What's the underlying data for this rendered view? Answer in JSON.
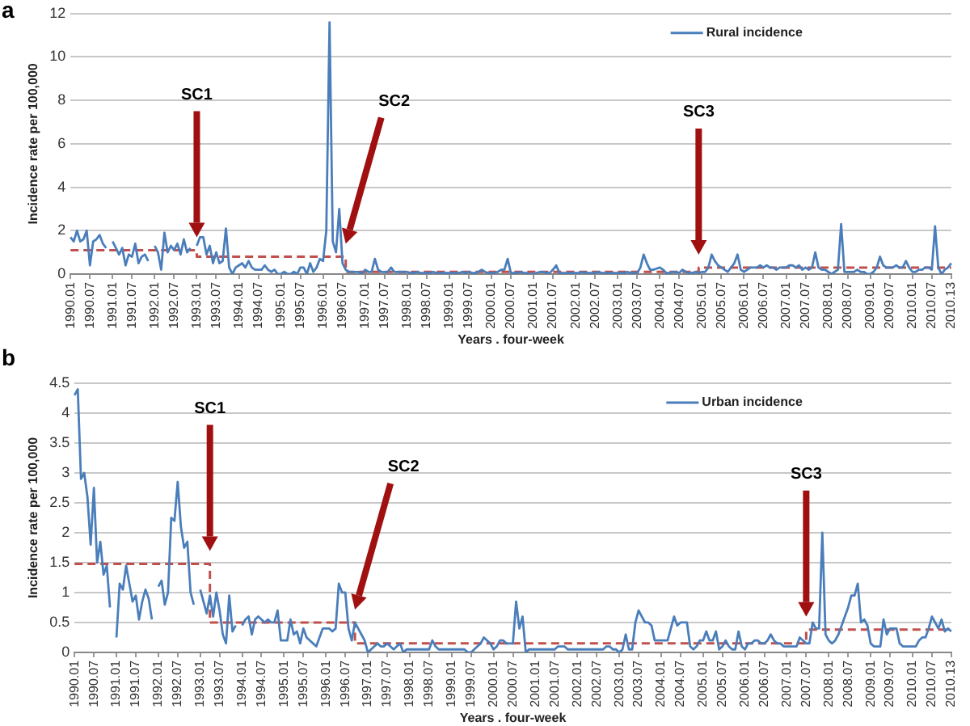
{
  "chart_data": [
    {
      "type": "line",
      "title": "a",
      "xlabel": "Years . four-week",
      "ylabel": "Incidence rate per 100,000",
      "grid": "y",
      "legend": "top right",
      "marker": "none",
      "categories": [
        "1990.01",
        null,
        null,
        null,
        null,
        null,
        "1990.07",
        null,
        null,
        null,
        null,
        null,
        null,
        "1991.01",
        null,
        null,
        null,
        null,
        null,
        "1991.07",
        null,
        null,
        null,
        null,
        null,
        null,
        "1992.01",
        null,
        null,
        null,
        null,
        null,
        "1992.07",
        null,
        null,
        null,
        null,
        null,
        null,
        "1993.01",
        null,
        null,
        null,
        null,
        null,
        "1993.07",
        null,
        null,
        null,
        null,
        null,
        null,
        "1994.01",
        null,
        null,
        null,
        null,
        null,
        "1994.07",
        null,
        null,
        null,
        null,
        null,
        null,
        "1995.01",
        null,
        null,
        null,
        null,
        null,
        "1995.07",
        null,
        null,
        null,
        null,
        null,
        null,
        "1996.01",
        null,
        null,
        null,
        null,
        null,
        "1996.07",
        null,
        null,
        null,
        null,
        null,
        null,
        "1997.01",
        null,
        null,
        null,
        null,
        null,
        "1997.07",
        null,
        null,
        null,
        null,
        null,
        null,
        "1998.01",
        null,
        null,
        null,
        null,
        null,
        "1998.07",
        null,
        null,
        null,
        null,
        null,
        null,
        "1999.01",
        null,
        null,
        null,
        null,
        null,
        "1999.07",
        null,
        null,
        null,
        null,
        null,
        null,
        "2000.01",
        null,
        null,
        null,
        null,
        null,
        "2000.07",
        null,
        null,
        null,
        null,
        null,
        null,
        "2001.01",
        null,
        null,
        null,
        null,
        null,
        "2001.07",
        null,
        null,
        null,
        null,
        null,
        null,
        "2002.01",
        null,
        null,
        null,
        null,
        null,
        "2002.07",
        null,
        null,
        null,
        null,
        null,
        null,
        "2003.01",
        null,
        null,
        null,
        null,
        null,
        "2003.07",
        null,
        null,
        null,
        null,
        null,
        null,
        "2004.01",
        null,
        null,
        null,
        null,
        null,
        "2004.07",
        null,
        null,
        null,
        null,
        null,
        null,
        "2005.01",
        null,
        null,
        null,
        null,
        null,
        "2005.07",
        null,
        null,
        null,
        null,
        null,
        null,
        "2006.01",
        null,
        null,
        null,
        null,
        null,
        "2006.07",
        null,
        null,
        null,
        null,
        null,
        null,
        "2007.01",
        null,
        null,
        null,
        null,
        null,
        "2007.07",
        null,
        null,
        null,
        null,
        null,
        null,
        "2008.01",
        null,
        null,
        null,
        null,
        null,
        "2008.07",
        null,
        null,
        null,
        null,
        null,
        null,
        "2009.01",
        null,
        null,
        null,
        null,
        null,
        "2009.07",
        null,
        null,
        null,
        null,
        null,
        null,
        "2010.01",
        null,
        null,
        null,
        null,
        null,
        "2010.07",
        null,
        null,
        null,
        null,
        null,
        "2010.13"
      ],
      "ylim": [
        0,
        12
      ],
      "yticks": [
        0,
        2,
        4,
        6,
        8,
        10,
        12
      ],
      "annotations": [
        "SC1",
        "SC2",
        "SC3"
      ],
      "series": [
        {
          "name": "Rural incidence",
          "color": "#4a7ebb",
          "values": [
            1.7,
            1.5,
            2.0,
            1.5,
            1.6,
            2.0,
            0.4,
            1.5,
            1.6,
            1.8,
            1.4,
            1.2,
            null,
            1.5,
            1.2,
            0.9,
            1.2,
            0.4,
            0.9,
            0.8,
            1.4,
            0.5,
            0.8,
            0.9,
            0.6,
            null,
            1.3,
            1.0,
            0.2,
            1.9,
            1.0,
            1.3,
            1.1,
            1.4,
            0.9,
            1.6,
            1.0,
            1.2,
            null,
            1.3,
            1.7,
            1.7,
            0.9,
            1.3,
            0.5,
            1.0,
            0.5,
            0.6,
            2.1,
            0.3,
            0.0,
            0.3,
            0.4,
            0.5,
            0.3,
            0.6,
            0.3,
            0.2,
            0.2,
            0.2,
            0.4,
            0.2,
            0.1,
            0.2,
            0.0,
            0.0,
            0.1,
            0.0,
            0.0,
            0.1,
            0.0,
            0.3,
            0.3,
            0.0,
            0.5,
            0.1,
            0.3,
            0.7,
            0.6,
            2.0,
            11.6,
            1.5,
            1.0,
            3.0,
            0.5,
            0.2,
            0.1,
            0.1,
            0.1,
            0.1,
            0.0,
            0.2,
            0.1,
            0.1,
            0.7,
            0.2,
            0.1,
            0.1,
            0.1,
            0.3,
            0.1,
            0.1,
            0.1,
            0.1,
            0.1,
            0.05,
            0.05,
            0.1,
            0.05,
            0.05,
            0.05,
            0.05,
            0.1,
            0.05,
            0.05,
            0.05,
            0.05,
            0.05,
            0.05,
            0.05,
            0.05,
            0.1,
            0.05,
            0.1,
            0.05,
            0.05,
            0.1,
            0.2,
            0.1,
            0.05,
            0.05,
            0.05,
            0.1,
            0.2,
            0.2,
            0.7,
            0.05,
            0.05,
            0.05,
            0.1,
            0.05,
            0.05,
            0.0,
            0.0,
            0.05,
            0.1,
            0.1,
            0.05,
            0.05,
            0.2,
            0.4,
            0.05,
            0.05,
            0.05,
            0.05,
            0.05,
            0.05,
            0.05,
            0.1,
            0.05,
            0.05,
            0.05,
            0.05,
            0.1,
            0.05,
            0.05,
            0.05,
            0.05,
            0.05,
            0.05,
            0.05,
            0.05,
            0.1,
            0.05,
            0.05,
            0.05,
            0.3,
            0.9,
            0.5,
            0.2,
            0.2,
            0.25,
            0.3,
            0.2,
            0.05,
            0.05,
            0.1,
            0.1,
            0.05,
            0.2,
            0.1,
            0.05,
            0.05,
            0.1,
            0.05,
            0.1,
            0.1,
            0.3,
            0.9,
            0.6,
            0.4,
            0.3,
            0.2,
            0.1,
            0.3,
            0.5,
            0.9,
            0.2,
            0.1,
            0.2,
            0.3,
            0.3,
            0.3,
            0.4,
            0.3,
            0.4,
            0.3,
            0.3,
            0.2,
            0.3,
            0.3,
            0.3,
            0.4,
            0.4,
            0.3,
            0.4,
            0.2,
            0.3,
            0.2,
            0.3,
            1.0,
            0.3,
            0.2,
            0.2,
            0.1,
            0.0,
            0.1,
            0.2,
            2.3,
            0.1,
            0.1,
            0.1,
            0.1,
            0.2,
            0.1,
            0.1,
            0.0,
            0.0,
            0.1,
            0.3,
            0.8,
            0.4,
            0.3,
            0.3,
            0.3,
            0.4,
            0.3,
            0.3,
            0.6,
            0.3,
            0.1,
            0.1,
            0.2,
            0.2,
            0.3,
            0.3,
            0.2,
            2.2,
            0.3,
            0.0,
            0.2,
            0.3,
            0.5
          ]
        },
        {
          "type": "step",
          "color": "#c0504d",
          "line_style": "dashed",
          "values": [
            1.1,
            1.1,
            1.1,
            1.1,
            1.1,
            1.1,
            1.1,
            1.1,
            1.1,
            1.1,
            1.1,
            1.1,
            1.1,
            1.1,
            1.1,
            1.1,
            1.1,
            1.1,
            1.1,
            1.1,
            1.1,
            1.1,
            1.1,
            1.1,
            1.1,
            1.1,
            1.1,
            1.1,
            1.1,
            1.1,
            1.1,
            1.1,
            1.1,
            1.1,
            1.1,
            1.1,
            1.1,
            1.1,
            1.1,
            0.8,
            0.8,
            0.8,
            0.8,
            0.8,
            0.8,
            0.8,
            0.8,
            0.8,
            0.8,
            0.8,
            0.8,
            0.8,
            0.8,
            0.8,
            0.8,
            0.8,
            0.8,
            0.8,
            0.8,
            0.8,
            0.8,
            0.8,
            0.8,
            0.8,
            0.8,
            0.8,
            0.8,
            0.8,
            0.8,
            0.8,
            0.8,
            0.8,
            0.8,
            0.8,
            0.8,
            0.8,
            0.8,
            0.8,
            0.8,
            0.8,
            0.8,
            0.8,
            0.8,
            0.8,
            0.8,
            0.1,
            0.1,
            0.1,
            0.1,
            0.1,
            0.1,
            0.1,
            0.1,
            0.1,
            0.1,
            0.1,
            0.1,
            0.1,
            0.1,
            0.1,
            0.1,
            0.1,
            0.1,
            0.1,
            0.1,
            0.1,
            0.1,
            0.1,
            0.1,
            0.1,
            0.1,
            0.1,
            0.1,
            0.1,
            0.1,
            0.1,
            0.1,
            0.1,
            0.1,
            0.1,
            0.1,
            0.1,
            0.1,
            0.1,
            0.1,
            0.1,
            0.1,
            0.1,
            0.1,
            0.1,
            0.1,
            0.1,
            0.1,
            0.1,
            0.1,
            0.1,
            0.1,
            0.1,
            0.1,
            0.1,
            0.1,
            0.1,
            0.1,
            0.1,
            0.1,
            0.1,
            0.1,
            0.1,
            0.1,
            0.1,
            0.1,
            0.1,
            0.1,
            0.1,
            0.1,
            0.1,
            0.1,
            0.1,
            0.1,
            0.1,
            0.1,
            0.1,
            0.1,
            0.1,
            0.1,
            0.1,
            0.1,
            0.1,
            0.1,
            0.1,
            0.1,
            0.1,
            0.1,
            0.1,
            0.1,
            0.1,
            0.1,
            0.1,
            0.1,
            0.1,
            0.1,
            0.1,
            0.1,
            0.1,
            0.1,
            0.1,
            0.1,
            0.1,
            0.1,
            0.1,
            0.1,
            0.1,
            0.1,
            0.1,
            0.3,
            0.3,
            0.3,
            0.3,
            0.3,
            0.3,
            0.3,
            0.3,
            0.3,
            0.3,
            0.3,
            0.3,
            0.3,
            0.3,
            0.3,
            0.3,
            0.3,
            0.3,
            0.3,
            0.3,
            0.3,
            0.3,
            0.3,
            0.3,
            0.3,
            0.3,
            0.3,
            0.3,
            0.3,
            0.3,
            0.3,
            0.3,
            0.3,
            0.3,
            0.3,
            0.3,
            0.3,
            0.3,
            0.3,
            0.3,
            0.3,
            0.3,
            0.3,
            0.3,
            0.3,
            0.3,
            0.3,
            0.3,
            0.3,
            0.3,
            0.3,
            0.3,
            0.3,
            0.3,
            0.3,
            0.3,
            0.3,
            0.3,
            0.3,
            0.3,
            0.3,
            0.3,
            0.3,
            0.3,
            0.3,
            0.3,
            0.3,
            0.3,
            0.3,
            0.3,
            0.3,
            0.3,
            0.3,
            0.3,
            0.3,
            0.3,
            0.3,
            0.3,
            0.3
          ]
        }
      ]
    },
    {
      "type": "line",
      "title": "b",
      "xlabel": "Years . four-week",
      "ylabel": "Incidence rate per 100,000",
      "grid": "y",
      "legend": "top right",
      "marker": "none",
      "categories": [
        "1990.01",
        null,
        null,
        null,
        null,
        null,
        "1990.07",
        null,
        null,
        null,
        null,
        null,
        null,
        "1991.01",
        null,
        null,
        null,
        null,
        null,
        "1991.07",
        null,
        null,
        null,
        null,
        null,
        null,
        "1992.01",
        null,
        null,
        null,
        null,
        null,
        "1992.07",
        null,
        null,
        null,
        null,
        null,
        null,
        "1993.01",
        null,
        null,
        null,
        null,
        null,
        "1993.07",
        null,
        null,
        null,
        null,
        null,
        null,
        "1994.01",
        null,
        null,
        null,
        null,
        null,
        "1994.07",
        null,
        null,
        null,
        null,
        null,
        null,
        "1995.01",
        null,
        null,
        null,
        null,
        null,
        "1995.07",
        null,
        null,
        null,
        null,
        null,
        null,
        "1996.01",
        null,
        null,
        null,
        null,
        null,
        "1996.07",
        null,
        null,
        null,
        null,
        null,
        null,
        "1997.01",
        null,
        null,
        null,
        null,
        null,
        "1997.07",
        null,
        null,
        null,
        null,
        null,
        null,
        "1998.01",
        null,
        null,
        null,
        null,
        null,
        "1998.07",
        null,
        null,
        null,
        null,
        null,
        null,
        "1999.01",
        null,
        null,
        null,
        null,
        null,
        "1999.07",
        null,
        null,
        null,
        null,
        null,
        null,
        "2000.01",
        null,
        null,
        null,
        null,
        null,
        "2000.07",
        null,
        null,
        null,
        null,
        null,
        null,
        "2001.01",
        null,
        null,
        null,
        null,
        null,
        "2001.07",
        null,
        null,
        null,
        null,
        null,
        null,
        "2002.01",
        null,
        null,
        null,
        null,
        null,
        "2002.07",
        null,
        null,
        null,
        null,
        null,
        null,
        "2003.01",
        null,
        null,
        null,
        null,
        null,
        "2003.07",
        null,
        null,
        null,
        null,
        null,
        null,
        "2004.01",
        null,
        null,
        null,
        null,
        null,
        "2004.07",
        null,
        null,
        null,
        null,
        null,
        null,
        "2005.01",
        null,
        null,
        null,
        null,
        null,
        "2005.07",
        null,
        null,
        null,
        null,
        null,
        null,
        "2006.01",
        null,
        null,
        null,
        null,
        null,
        "2006.07",
        null,
        null,
        null,
        null,
        null,
        null,
        "2007.01",
        null,
        null,
        null,
        null,
        null,
        "2007.07",
        null,
        null,
        null,
        null,
        null,
        null,
        "2008.01",
        null,
        null,
        null,
        null,
        null,
        "2008.07",
        null,
        null,
        null,
        null,
        null,
        null,
        "2009.01",
        null,
        null,
        null,
        null,
        null,
        "2009.07",
        null,
        null,
        null,
        null,
        null,
        null,
        "2010.01",
        null,
        null,
        null,
        null,
        null,
        "2010.07",
        null,
        null,
        null,
        null,
        null,
        "2010.13"
      ],
      "ylim": [
        0,
        4.5
      ],
      "yticks": [
        0,
        0.5,
        1,
        1.5,
        2,
        2.5,
        3,
        3.5,
        4,
        4.5
      ],
      "annotations": [
        "SC1",
        "SC2",
        "SC3"
      ],
      "series": [
        {
          "name": "Urban incidence",
          "color": "#4a7ebb",
          "values": [
            4.3,
            4.4,
            2.9,
            3.0,
            2.6,
            1.8,
            2.75,
            1.5,
            1.85,
            1.3,
            1.45,
            0.75,
            null,
            0.25,
            1.15,
            1.05,
            1.45,
            1.15,
            0.85,
            0.95,
            0.55,
            0.85,
            1.05,
            0.9,
            0.55,
            null,
            1.1,
            1.2,
            0.8,
            1.0,
            2.25,
            2.2,
            2.85,
            2.1,
            1.75,
            1.85,
            1.0,
            0.8,
            null,
            1.05,
            0.85,
            0.65,
            0.95,
            0.6,
            1.0,
            0.7,
            0.3,
            0.15,
            0.95,
            0.35,
            0.45,
            null,
            0.45,
            0.55,
            0.6,
            0.3,
            0.55,
            0.6,
            0.55,
            0.5,
            0.55,
            0.5,
            0.5,
            0.7,
            0.2,
            0.2,
            0.2,
            0.55,
            0.3,
            0.35,
            0.15,
            0.4,
            0.25,
            0.2,
            0.15,
            0.1,
            0.25,
            0.4,
            0.4,
            0.4,
            0.35,
            0.4,
            1.15,
            1.0,
            1.0,
            0.4,
            0.2,
            0.5,
            0.4,
            0.3,
            0.2,
            0.0,
            0.05,
            0.1,
            0.15,
            0.1,
            0.1,
            0.15,
            0.1,
            0.05,
            0.1,
            0.15,
            0.0,
            0.05,
            0.05,
            0.05,
            0.05,
            0.05,
            0.05,
            0.05,
            0.05,
            0.2,
            0.1,
            0.05,
            0.05,
            0.05,
            0.05,
            0.05,
            0.05,
            0.05,
            0.05,
            0.05,
            0.0,
            0.0,
            0.05,
            0.1,
            0.15,
            0.25,
            0.2,
            0.15,
            0.05,
            0.1,
            0.2,
            0.2,
            0.15,
            0.15,
            0.15,
            0.85,
            0.4,
            0.6,
            0.0,
            0.05,
            0.05,
            0.05,
            0.05,
            0.05,
            0.05,
            0.05,
            0.05,
            0.05,
            0.1,
            0.1,
            0.1,
            0.05,
            0.05,
            0.05,
            0.05,
            0.05,
            0.05,
            0.05,
            0.05,
            0.05,
            0.05,
            0.05,
            0.05,
            0.1,
            0.1,
            0.05,
            0.05,
            0.0,
            0.05,
            0.3,
            0.05,
            0.05,
            0.5,
            0.7,
            0.6,
            0.5,
            0.5,
            0.45,
            0.2,
            0.2,
            0.2,
            0.2,
            0.2,
            0.4,
            0.6,
            0.45,
            0.5,
            0.5,
            0.5,
            0.1,
            0.05,
            0.1,
            0.2,
            0.2,
            0.35,
            0.2,
            0.2,
            0.35,
            0.05,
            0.1,
            0.2,
            0.1,
            0.05,
            0.05,
            0.35,
            0.1,
            0.05,
            0.15,
            0.15,
            0.2,
            0.2,
            0.15,
            0.15,
            0.2,
            0.3,
            0.2,
            0.15,
            0.15,
            0.1,
            0.1,
            0.1,
            0.1,
            0.1,
            0.25,
            0.2,
            0.15,
            0.15,
            0.5,
            0.4,
            0.4,
            2.0,
            0.3,
            0.2,
            0.15,
            0.2,
            0.3,
            0.45,
            0.6,
            0.75,
            0.95,
            0.95,
            1.15,
            0.5,
            0.55,
            0.45,
            0.15,
            0.1,
            0.1,
            0.1,
            0.55,
            0.3,
            0.4,
            0.4,
            0.4,
            0.15,
            0.1,
            0.1,
            0.1,
            0.1,
            0.1,
            0.2,
            0.25,
            0.25,
            0.4,
            0.6,
            0.5,
            0.4,
            0.55,
            0.35,
            0.4,
            0.35
          ]
        },
        {
          "type": "step",
          "color": "#c0504d",
          "line_style": "dashed",
          "values": [
            1.48,
            1.48,
            1.48,
            1.48,
            1.48,
            1.48,
            1.48,
            1.48,
            1.48,
            1.48,
            1.48,
            1.48,
            1.48,
            1.48,
            1.48,
            1.48,
            1.48,
            1.48,
            1.48,
            1.48,
            1.48,
            1.48,
            1.48,
            1.48,
            1.48,
            1.48,
            1.48,
            1.48,
            1.48,
            1.48,
            1.48,
            1.48,
            1.48,
            1.48,
            1.48,
            1.48,
            1.48,
            1.48,
            1.48,
            1.48,
            1.48,
            1.48,
            0.5,
            0.5,
            0.5,
            0.5,
            0.5,
            0.5,
            0.5,
            0.5,
            0.5,
            0.5,
            0.5,
            0.5,
            0.5,
            0.5,
            0.5,
            0.5,
            0.5,
            0.5,
            0.5,
            0.5,
            0.5,
            0.5,
            0.5,
            0.5,
            0.5,
            0.5,
            0.5,
            0.5,
            0.5,
            0.5,
            0.5,
            0.5,
            0.5,
            0.5,
            0.5,
            0.5,
            0.5,
            0.5,
            0.5,
            0.5,
            0.5,
            0.5,
            0.5,
            0.5,
            0.5,
            0.15,
            0.15,
            0.15,
            0.15,
            0.15,
            0.15,
            0.15,
            0.15,
            0.15,
            0.15,
            0.15,
            0.15,
            0.15,
            0.15,
            0.15,
            0.15,
            0.15,
            0.15,
            0.15,
            0.15,
            0.15,
            0.15,
            0.15,
            0.15,
            0.15,
            0.15,
            0.15,
            0.15,
            0.15,
            0.15,
            0.15,
            0.15,
            0.15,
            0.15,
            0.15,
            0.15,
            0.15,
            0.15,
            0.15,
            0.15,
            0.15,
            0.15,
            0.15,
            0.15,
            0.15,
            0.15,
            0.15,
            0.15,
            0.15,
            0.15,
            0.15,
            0.15,
            0.15,
            0.15,
            0.15,
            0.15,
            0.15,
            0.15,
            0.15,
            0.15,
            0.15,
            0.15,
            0.15,
            0.15,
            0.15,
            0.15,
            0.15,
            0.15,
            0.15,
            0.15,
            0.15,
            0.15,
            0.15,
            0.15,
            0.15,
            0.15,
            0.15,
            0.15,
            0.15,
            0.15,
            0.15,
            0.15,
            0.15,
            0.15,
            0.15,
            0.15,
            0.15,
            0.15,
            0.15,
            0.15,
            0.15,
            0.15,
            0.15,
            0.15,
            0.15,
            0.15,
            0.15,
            0.15,
            0.15,
            0.15,
            0.15,
            0.15,
            0.15,
            0.15,
            0.15,
            0.15,
            0.15,
            0.15,
            0.15,
            0.15,
            0.15,
            0.15,
            0.15,
            0.15,
            0.15,
            0.15,
            0.15,
            0.15,
            0.15,
            0.15,
            0.15,
            0.15,
            0.15,
            0.15,
            0.15,
            0.15,
            0.15,
            0.15,
            0.15,
            0.15,
            0.15,
            0.15,
            0.15,
            0.15,
            0.15,
            0.15,
            0.15,
            0.15,
            0.15,
            0.15,
            0.38,
            0.38,
            0.38,
            0.38,
            0.38,
            0.38,
            0.38,
            0.38,
            0.38,
            0.38,
            0.38,
            0.38,
            0.38,
            0.38,
            0.38,
            0.38,
            0.38,
            0.38,
            0.38,
            0.38,
            0.38,
            0.38,
            0.38,
            0.38,
            0.38,
            0.38,
            0.38,
            0.38,
            0.38,
            0.38,
            0.38,
            0.38,
            0.38,
            0.38,
            0.38,
            0.38,
            0.38,
            0.38,
            0.38,
            0.38,
            0.38,
            0.38,
            0.38,
            0.38,
            0.38,
            0.38
          ]
        }
      ]
    }
  ]
}
